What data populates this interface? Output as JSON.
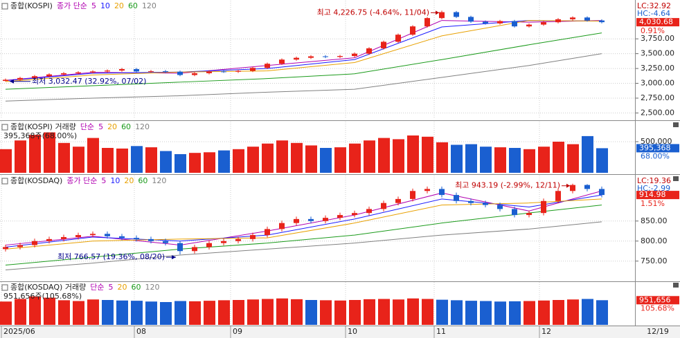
{
  "x_axis": {
    "labels": [
      "2025/06",
      "08",
      "09",
      "10",
      "11",
      "12"
    ],
    "end_label": "12/19"
  },
  "chart_data": [
    {
      "type": "candlestick",
      "title": "종합(KOSPI)",
      "ma_label": "종가 단순",
      "up_color": "#e8231a",
      "down_color": "#1a5fd0",
      "label_color": "#e8231a",
      "ylim": [
        2400,
        4370
      ],
      "yticks": [
        {
          "value": 2500,
          "label": "2,500.00"
        },
        {
          "value": 2750,
          "label": "2,750.00"
        },
        {
          "value": 3000,
          "label": "3,000.00"
        },
        {
          "value": 3250,
          "label": "3,250.00"
        },
        {
          "value": 3500,
          "label": "3,500.00"
        },
        {
          "value": 3750,
          "label": "3,750.00"
        }
      ],
      "open": [
        3040,
        3060,
        3090,
        3120,
        3150,
        3170,
        3185,
        3200,
        3215,
        3240,
        3200,
        3205,
        3195,
        3140,
        3170,
        3200,
        3195,
        3210,
        3260,
        3330,
        3400,
        3430,
        3455,
        3445,
        3460,
        3500,
        3590,
        3700,
        3820,
        3960,
        4100,
        4200,
        4120,
        4040,
        4010,
        4050,
        3960,
        3990,
        4030,
        4080,
        4110,
        4060
      ],
      "high": [
        3080,
        3110,
        3140,
        3170,
        3190,
        3205,
        3220,
        3235,
        3260,
        3260,
        3225,
        3225,
        3215,
        3190,
        3220,
        3220,
        3230,
        3280,
        3350,
        3420,
        3450,
        3475,
        3475,
        3480,
        3520,
        3610,
        3720,
        3840,
        3980,
        4120,
        4226,
        4220,
        4140,
        4060,
        4070,
        4070,
        4010,
        4050,
        4100,
        4130,
        4130,
        4080
      ],
      "low": [
        3032,
        3040,
        3070,
        3100,
        3130,
        3150,
        3165,
        3180,
        3195,
        3180,
        3180,
        3175,
        3120,
        3120,
        3150,
        3175,
        3175,
        3190,
        3240,
        3310,
        3380,
        3410,
        3425,
        3425,
        3440,
        3480,
        3570,
        3680,
        3800,
        3940,
        4080,
        4100,
        4020,
        3990,
        3990,
        3940,
        3940,
        3970,
        4010,
        4060,
        4040,
        4010
      ],
      "close": [
        3060,
        3090,
        3120,
        3150,
        3170,
        3185,
        3200,
        3215,
        3240,
        3200,
        3205,
        3195,
        3140,
        3170,
        3200,
        3195,
        3210,
        3260,
        3330,
        3400,
        3430,
        3455,
        3445,
        3460,
        3500,
        3590,
        3700,
        3820,
        3960,
        4100,
        4200,
        4120,
        4040,
        4010,
        4050,
        3960,
        3990,
        4030,
        4080,
        4110,
        4060,
        4030.68
      ],
      "ma_index": [
        0,
        6,
        12,
        18,
        24,
        30,
        36,
        41
      ],
      "series": [
        {
          "name": "5",
          "color": "#b000b0",
          "values": [
            3050,
            3185,
            3170,
            3300,
            3430,
            4060,
            4030,
            4060
          ]
        },
        {
          "name": "10",
          "color": "#1a1aff",
          "values": [
            3045,
            3170,
            3190,
            3250,
            3400,
            3950,
            4060,
            4050
          ]
        },
        {
          "name": "20",
          "color": "#e8a000",
          "values": [
            3030,
            3140,
            3190,
            3210,
            3350,
            3800,
            4060,
            4050
          ]
        },
        {
          "name": "60",
          "color": "#1a9a1a",
          "values": [
            2900,
            2960,
            3020,
            3080,
            3160,
            3400,
            3650,
            3850
          ]
        },
        {
          "name": "120",
          "color": "#808080",
          "values": [
            2700,
            2750,
            2790,
            2850,
            2900,
            3100,
            3300,
            3500
          ]
        }
      ],
      "high_index": 30,
      "low_index": 0,
      "high_note": "최고 4,226.75 (-4.64%, 11/04)",
      "low_note": "최저 3,032.47 (32.92%, 07/02)",
      "lc": "LC:32.92",
      "hc": "HC:-4.64",
      "last_label": "4,030.68",
      "change": "0.91%"
    },
    {
      "type": "bar",
      "title": "종합(KOSPI) 거래량",
      "ma_label": "단순",
      "label_color": "#1a5fd0",
      "series": [
        {
          "name": "5",
          "color": "#b000b0"
        },
        {
          "name": "20",
          "color": "#e8a000"
        },
        {
          "name": "60",
          "color": "#1a9a1a"
        },
        {
          "name": "120",
          "color": "#808080"
        }
      ],
      "ylim": [
        0,
        800000
      ],
      "yticks": [
        {
          "value": 500000,
          "label": "500,000"
        }
      ],
      "values": [
        380000,
        520000,
        610000,
        650000,
        480000,
        420000,
        560000,
        400000,
        390000,
        430000,
        410000,
        350000,
        300000,
        320000,
        330000,
        360000,
        380000,
        420000,
        470000,
        520000,
        480000,
        440000,
        400000,
        410000,
        470000,
        520000,
        560000,
        540000,
        600000,
        580000,
        490000,
        450000,
        460000,
        420000,
        410000,
        400000,
        380000,
        420000,
        500000,
        460000,
        590000,
        395368
      ],
      "note": "395,368주(68.00%)",
      "last_label": "395,368",
      "change": "68.00%"
    },
    {
      "type": "candlestick",
      "title": "종합(KOSDAQ)",
      "ma_label": "종가 단순",
      "up_color": "#e8231a",
      "down_color": "#1a5fd0",
      "label_color": "#e8231a",
      "ylim": [
        703,
        960
      ],
      "yticks": [
        {
          "value": 750,
          "label": "750.00"
        },
        {
          "value": 800,
          "label": "800.00"
        },
        {
          "value": 850,
          "label": "850.00"
        }
      ],
      "open": [
        780,
        785,
        790,
        800,
        805,
        810,
        815,
        818,
        812,
        808,
        805,
        800,
        795,
        775,
        785,
        795,
        800,
        805,
        815,
        830,
        845,
        855,
        850,
        858,
        865,
        870,
        880,
        895,
        905,
        925,
        930,
        915,
        900,
        895,
        890,
        880,
        865,
        870,
        900,
        925,
        940,
        930
      ],
      "high": [
        791,
        796,
        806,
        811,
        816,
        821,
        824,
        824,
        818,
        814,
        811,
        806,
        801,
        791,
        801,
        806,
        811,
        821,
        836,
        851,
        861,
        861,
        864,
        871,
        876,
        886,
        901,
        911,
        931,
        936,
        936,
        921,
        906,
        901,
        896,
        886,
        876,
        906,
        931,
        943.19,
        942,
        936
      ],
      "low": [
        774,
        779,
        784,
        794,
        799,
        804,
        809,
        806,
        802,
        799,
        794,
        789,
        766.57,
        769,
        779,
        789,
        794,
        799,
        809,
        824,
        839,
        844,
        844,
        852,
        859,
        864,
        874,
        889,
        899,
        919,
        909,
        894,
        889,
        884,
        874,
        859,
        859,
        864,
        894,
        919,
        924,
        909
      ],
      "close": [
        785,
        790,
        800,
        805,
        810,
        815,
        818,
        812,
        808,
        805,
        800,
        795,
        775,
        785,
        795,
        800,
        805,
        815,
        830,
        845,
        855,
        850,
        858,
        865,
        870,
        880,
        895,
        905,
        925,
        930,
        915,
        900,
        895,
        890,
        880,
        865,
        870,
        900,
        925,
        940,
        930,
        914.98
      ],
      "ma_index": [
        0,
        6,
        12,
        18,
        24,
        30,
        36,
        41
      ],
      "series": [
        {
          "name": "5",
          "color": "#b000b0",
          "values": [
            790,
            812,
            790,
            825,
            865,
            920,
            875,
            925
          ]
        },
        {
          "name": "10",
          "color": "#1a1aff",
          "values": [
            785,
            810,
            800,
            815,
            855,
            905,
            885,
            915
          ]
        },
        {
          "name": "20",
          "color": "#e8a000",
          "values": [
            780,
            800,
            805,
            808,
            845,
            890,
            895,
            905
          ]
        },
        {
          "name": "60",
          "color": "#1a9a1a",
          "values": [
            740,
            760,
            780,
            795,
            815,
            845,
            870,
            890
          ]
        },
        {
          "name": "120",
          "color": "#808080",
          "values": [
            728,
            745,
            765,
            780,
            795,
            815,
            830,
            848
          ]
        }
      ],
      "high_index": 39,
      "low_index": 12,
      "high_note": "최고 943.19 (-2.99%, 12/11)",
      "low_note": "최저 766.57 (19.36%, 08/20)",
      "lc": "LC:19.36",
      "hc": "HC:-2.99",
      "last_label": "914.98",
      "change": "1.51%"
    },
    {
      "type": "bar",
      "title": "종합(KOSDAQ) 거래량",
      "ma_label": "단순",
      "label_color": "#e8231a",
      "series": [
        {
          "name": "5",
          "color": "#b000b0"
        },
        {
          "name": "20",
          "color": "#e8a000"
        },
        {
          "name": "60",
          "color": "#1a9a1a"
        },
        {
          "name": "120",
          "color": "#808080"
        }
      ],
      "ylim": [
        0,
        1600000
      ],
      "yticks": [],
      "values": [
        900000,
        1000000,
        1100000,
        1050000,
        950000,
        920000,
        980000,
        960000,
        940000,
        930000,
        900000,
        880000,
        920000,
        910000,
        930000,
        950000,
        960000,
        980000,
        1000000,
        1020000,
        990000,
        960000,
        950000,
        940000,
        960000,
        990000,
        1000000,
        980000,
        1020000,
        1000000,
        970000,
        950000,
        930000,
        920000,
        900000,
        910000,
        920000,
        940000,
        960000,
        980000,
        1000000,
        951656
      ],
      "note": "951,656주(105.68%)",
      "last_label": "951,656",
      "change": "105.68%"
    }
  ]
}
